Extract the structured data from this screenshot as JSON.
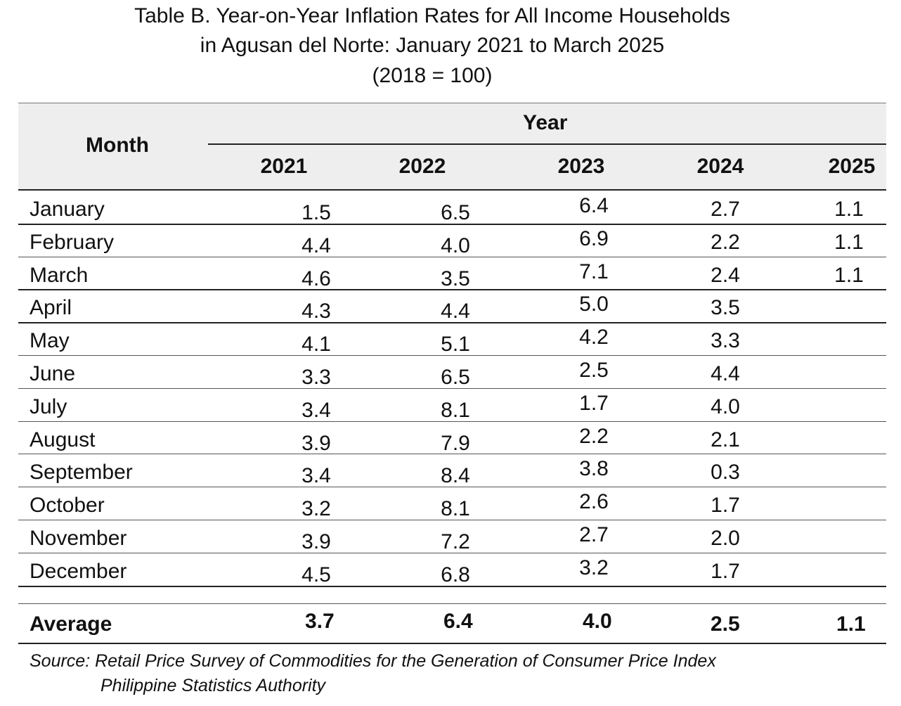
{
  "title": {
    "line1": "Table B. Year-on-Year Inflation Rates for All Income Households",
    "line2": "in Agusan del Norte: January 2021 to March 2025",
    "line3": "(2018 = 100)"
  },
  "header": {
    "month": "Month",
    "year": "Year",
    "years": [
      "2021",
      "2022",
      "2023",
      "2024",
      "2025"
    ]
  },
  "rows": [
    {
      "month": "January",
      "values": [
        "1.5",
        "6.5",
        "6.4",
        "2.7",
        "1.1"
      ]
    },
    {
      "month": "February",
      "values": [
        "4.4",
        "4.0",
        "6.9",
        "2.2",
        "1.1"
      ]
    },
    {
      "month": "March",
      "values": [
        "4.6",
        "3.5",
        "7.1",
        "2.4",
        "1.1"
      ]
    },
    {
      "month": "April",
      "values": [
        "4.3",
        "4.4",
        "5.0",
        "3.5",
        ""
      ]
    },
    {
      "month": "May",
      "values": [
        "4.1",
        "5.1",
        "4.2",
        "3.3",
        ""
      ]
    },
    {
      "month": "June",
      "values": [
        "3.3",
        "6.5",
        "2.5",
        "4.4",
        ""
      ]
    },
    {
      "month": "July",
      "values": [
        "3.4",
        "8.1",
        "1.7",
        "4.0",
        ""
      ]
    },
    {
      "month": "August",
      "values": [
        "3.9",
        "7.9",
        "2.2",
        "2.1",
        ""
      ]
    },
    {
      "month": "September",
      "values": [
        "3.4",
        "8.4",
        "3.8",
        "0.3",
        ""
      ]
    },
    {
      "month": "October",
      "values": [
        "3.2",
        "8.1",
        "2.6",
        "1.7",
        ""
      ]
    },
    {
      "month": "November",
      "values": [
        "3.9",
        "7.2",
        "2.7",
        "2.0",
        ""
      ]
    },
    {
      "month": "December",
      "values": [
        "4.5",
        "6.8",
        "3.2",
        "1.7",
        ""
      ]
    }
  ],
  "average": {
    "label": "Average",
    "values": [
      "3.7",
      "6.4",
      "4.0",
      "2.5",
      "1.1"
    ]
  },
  "source": {
    "line1": "Source: Retail Price Survey of Commodities for the Generation of Consumer Price Index",
    "line2": "Philippine Statistics Authority"
  }
}
